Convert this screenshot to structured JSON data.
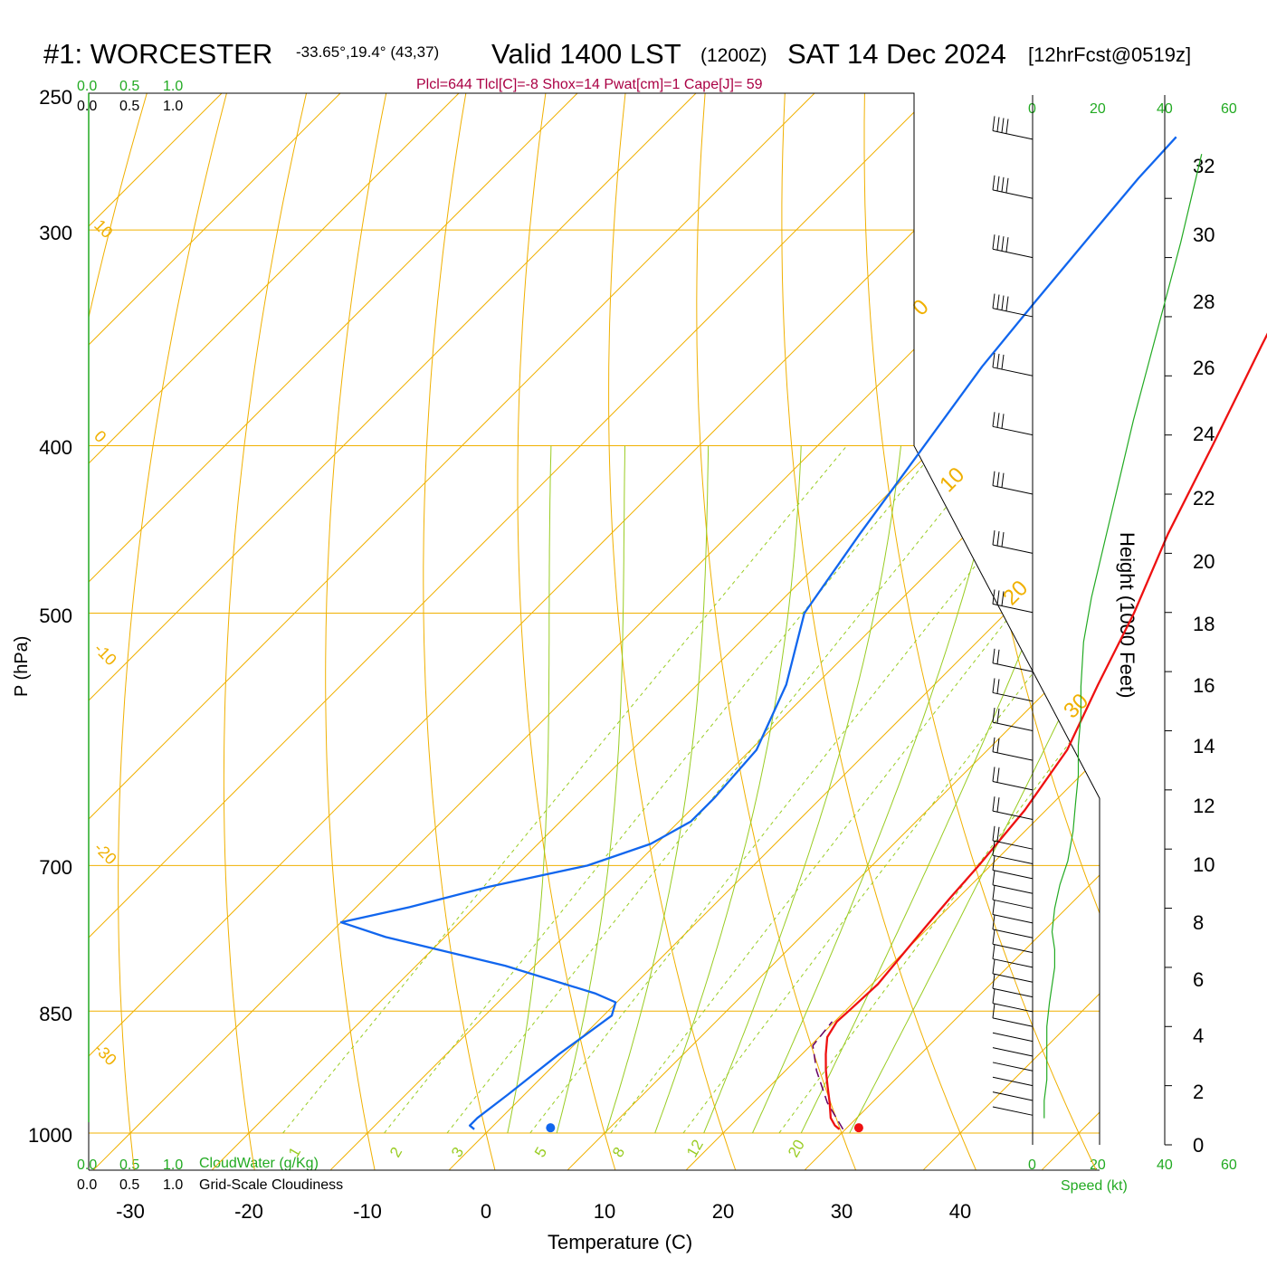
{
  "header": {
    "station": "#1: WORCESTER",
    "coords": "-33.65°,19.4° (43,37)",
    "valid": "Valid 1400 LST",
    "zulu": "(1200Z)",
    "date": "SAT 14 Dec 2024",
    "forecast": "[12hrFcst@0519z]",
    "indices": "Plcl=644 Tlcl[C]=-8 Shox=14 Pwat[cm]=1 Cape[J]= 59"
  },
  "colors": {
    "temperature": "#ee1111",
    "dewpoint": "#1166ee",
    "isotherm": "#f0b000",
    "dry_adiabat": "#f0b000",
    "moist_adiabat": "#99cc22",
    "mixing_ratio": "#99cc22",
    "parcel": "#660066",
    "scale_green": "#22aa22",
    "indices_text": "#aa0044"
  },
  "scales": {
    "cloud_water_ticks": [
      "0.0",
      "0.5",
      "1.0"
    ],
    "cloud_water_label": "CloudWater (g/Kg)",
    "cloudiness_ticks": [
      "0.0",
      "0.5",
      "1.0"
    ],
    "cloudiness_label": "Grid-Scale Cloudiness",
    "speed_ticks": [
      "0",
      "20",
      "40",
      "60"
    ],
    "speed_label": "Speed (kt)"
  },
  "axes": {
    "pressure_label": "P (hPa)",
    "pressure_ticks": [
      "250",
      "300",
      "400",
      "500",
      "700",
      "850",
      "1000"
    ],
    "temperature_label": "Temperature (C)",
    "temperature_ticks": [
      "-30",
      "-20",
      "-10",
      "0",
      "10",
      "20",
      "30",
      "40"
    ],
    "height_label": "Height (1000 Feet)",
    "height_ticks": [
      "0",
      "2",
      "4",
      "6",
      "8",
      "10",
      "12",
      "14",
      "16",
      "18",
      "20",
      "22",
      "24",
      "26",
      "28",
      "30",
      "32"
    ]
  },
  "chart_data": {
    "type": "line",
    "diagram": "skew-T log-P",
    "xlabel": "Temperature (C)",
    "ylabel": "P (hPa)",
    "xlim": [
      -35,
      46
    ],
    "ylim": [
      1030,
      250
    ],
    "pressure_levels_drawn": [
      250,
      300,
      400,
      500,
      700,
      850,
      1000
    ],
    "series": [
      {
        "name": "Temperature",
        "points_p_t": [
          [
            995,
            29.5
          ],
          [
            990,
            28.8
          ],
          [
            980,
            27.8
          ],
          [
            960,
            26.4
          ],
          [
            940,
            24.9
          ],
          [
            920,
            23.4
          ],
          [
            900,
            22.0
          ],
          [
            880,
            20.7
          ],
          [
            862,
            20.2
          ],
          [
            850,
            20.3
          ],
          [
            820,
            20.5
          ],
          [
            790,
            20.1
          ],
          [
            760,
            19.7
          ],
          [
            730,
            19.3
          ],
          [
            700,
            19.0
          ],
          [
            650,
            18.2
          ],
          [
            600,
            16.7
          ],
          [
            550,
            13.8
          ],
          [
            500,
            10.8
          ],
          [
            450,
            7.0
          ],
          [
            400,
            3.3
          ],
          [
            370,
            0.8
          ],
          [
            350,
            -1.0
          ],
          [
            320,
            -3.8
          ],
          [
            300,
            -5.5
          ],
          [
            280,
            -7.3
          ],
          [
            265,
            -8.6
          ]
        ]
      },
      {
        "name": "Dewpoint",
        "points_p_t": [
          [
            995,
            -1.3
          ],
          [
            990,
            -2.0
          ],
          [
            980,
            -2.0
          ],
          [
            950,
            -1.4
          ],
          [
            900,
            -0.5
          ],
          [
            870,
            0.3
          ],
          [
            855,
            0.7
          ],
          [
            840,
            -0.1
          ],
          [
            830,
            -2.6
          ],
          [
            800,
            -12.5
          ],
          [
            770,
            -25.0
          ],
          [
            755,
            -30.0
          ],
          [
            740,
            -25.5
          ],
          [
            720,
            -20.5
          ],
          [
            700,
            -14.0
          ],
          [
            680,
            -10.5
          ],
          [
            660,
            -9.0
          ],
          [
            640,
            -9.0
          ],
          [
            600,
            -9.5
          ],
          [
            550,
            -12.5
          ],
          [
            500,
            -17.0
          ],
          [
            450,
            -19.0
          ],
          [
            400,
            -21.0
          ],
          [
            360,
            -22.8
          ],
          [
            330,
            -23.8
          ],
          [
            300,
            -24.8
          ],
          [
            280,
            -25.5
          ],
          [
            265,
            -25.8
          ]
        ]
      },
      {
        "name": "Parcel",
        "points_p_t": [
          [
            995,
            29.8
          ],
          [
            960,
            26.2
          ],
          [
            920,
            22.6
          ],
          [
            890,
            20.2
          ],
          [
            862,
            19.8
          ]
        ]
      },
      {
        "name": "Height profile",
        "x_unit": "kt",
        "y_unit": "1000 ft",
        "points_speed_height": [
          [
            1,
            0.9
          ],
          [
            1,
            1.5
          ],
          [
            1.5,
            2.2
          ],
          [
            1.5,
            3.0
          ],
          [
            1.5,
            4.0
          ],
          [
            2,
            4.8
          ],
          [
            2.5,
            5.4
          ],
          [
            3,
            6.0
          ],
          [
            3,
            6.6
          ],
          [
            2.5,
            7.2
          ],
          [
            3,
            8.0
          ],
          [
            4,
            8.8
          ],
          [
            5.5,
            9.6
          ],
          [
            6.5,
            10.6
          ],
          [
            7,
            11.6
          ],
          [
            7.5,
            12.5
          ],
          [
            7.5,
            13.5
          ],
          [
            8,
            14.5
          ],
          [
            8,
            15.5
          ],
          [
            8.5,
            17.0
          ],
          [
            10,
            18.5
          ],
          [
            12,
            20.0
          ],
          [
            14,
            21.5
          ],
          [
            16,
            23.0
          ],
          [
            18,
            24.5
          ],
          [
            21,
            26.5
          ],
          [
            24,
            28.5
          ],
          [
            27,
            30.5
          ],
          [
            29,
            32.0
          ],
          [
            31,
            33.5
          ]
        ]
      },
      {
        "name": "Wind barbs",
        "description": "wind barb per level; values in kt",
        "points_height_speed": [
          [
            1,
            2
          ],
          [
            1.5,
            2
          ],
          [
            2,
            3
          ],
          [
            2.5,
            3
          ],
          [
            3,
            4
          ],
          [
            3.5,
            4
          ],
          [
            4,
            5
          ],
          [
            4.5,
            5
          ],
          [
            5,
            6
          ],
          [
            5.5,
            7
          ],
          [
            6,
            8
          ],
          [
            6.5,
            9
          ],
          [
            7,
            10
          ],
          [
            7.5,
            11
          ],
          [
            8,
            12
          ],
          [
            8.5,
            13
          ],
          [
            9,
            14
          ],
          [
            9.5,
            14
          ],
          [
            10,
            15
          ],
          [
            11,
            16
          ],
          [
            12,
            16
          ],
          [
            13,
            18
          ],
          [
            14,
            20
          ],
          [
            15,
            22
          ],
          [
            16,
            24
          ],
          [
            18,
            26
          ],
          [
            20,
            28
          ],
          [
            22,
            30
          ],
          [
            24,
            32
          ],
          [
            26,
            34
          ],
          [
            28,
            36
          ],
          [
            30,
            38
          ],
          [
            32,
            40
          ],
          [
            34,
            42
          ]
        ]
      }
    ],
    "surface_markers": [
      {
        "name": "Surface temperature",
        "t": 31,
        "p": 993
      },
      {
        "name": "Surface dewpoint",
        "t": 5,
        "p": 993
      }
    ],
    "isotherm_labels": [
      "40",
      "30",
      "20",
      "10",
      "0",
      "-10",
      "-20",
      "-30"
    ],
    "dry_adiabat_labels": [
      "0",
      "10",
      "20",
      "30"
    ],
    "mixing_ratio_labels": [
      "1",
      "2",
      "3",
      "5",
      "8",
      "12",
      "20"
    ]
  }
}
